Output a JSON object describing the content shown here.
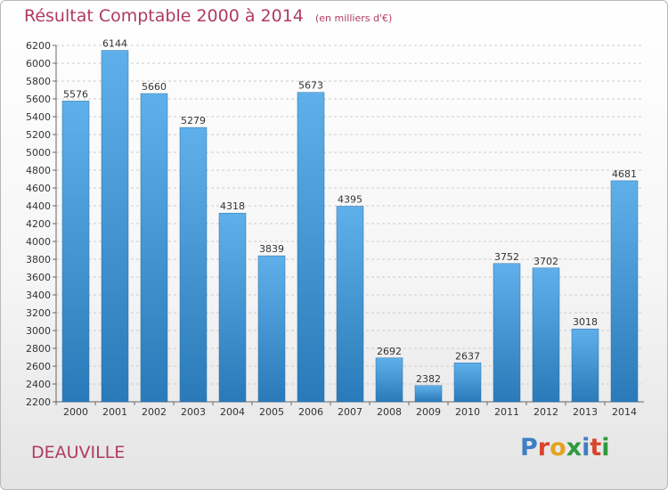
{
  "header": {
    "title": "Résultat Comptable 2000 à 2014",
    "unit": "(en milliers d'€)"
  },
  "footer": {
    "city": "DEAUVILLE",
    "logo_letters": [
      "P",
      "r",
      "o",
      "x",
      "i",
      "t",
      "i"
    ],
    "logo_colors": [
      "#3d7fc4",
      "#d9452b",
      "#e6a21f",
      "#2d9a3e",
      "#3d7fc4",
      "#d9452b",
      "#2d9a3e"
    ]
  },
  "colors": {
    "bar_top": "#5fb0ea",
    "bar_bottom": "#2a7ab9",
    "title": "#b03a64",
    "grid": "#cccccc"
  },
  "chart_data": {
    "type": "bar",
    "title": "Résultat Comptable 2000 à 2014",
    "ylabel": "",
    "xlabel": "",
    "categories": [
      "2000",
      "2001",
      "2002",
      "2003",
      "2004",
      "2005",
      "2006",
      "2007",
      "2008",
      "2009",
      "2010",
      "2011",
      "2012",
      "2013",
      "2014"
    ],
    "values": [
      5576,
      6144,
      5660,
      5279,
      4318,
      3839,
      5673,
      4395,
      2692,
      2382,
      2637,
      3752,
      3702,
      3018,
      4681
    ],
    "ylim": [
      2200,
      6200
    ],
    "ytick_step": 200,
    "grid": true
  }
}
